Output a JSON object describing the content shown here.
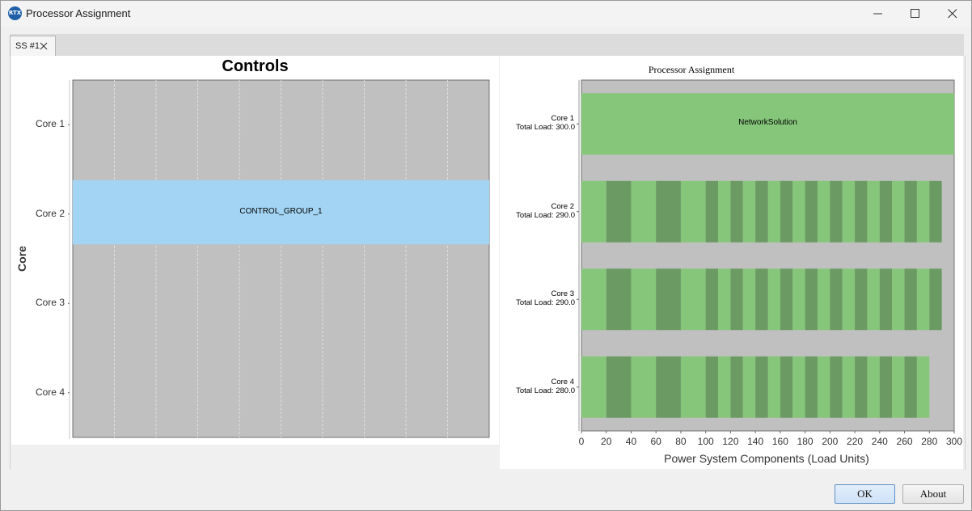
{
  "window": {
    "title": "Processor Assignment",
    "app_icon_text": "RTX"
  },
  "tabs": [
    {
      "label": "SS #1"
    }
  ],
  "left_chart": {
    "title": "Controls",
    "ylabel": "Core",
    "categories": [
      "Core 1",
      "Core 2",
      "Core 3",
      "Core 4"
    ],
    "colors": {
      "background": "#c0c0c0",
      "bar": "#a3d4f3"
    },
    "chart_data": {
      "type": "bar",
      "orientation": "horizontal",
      "title": "Controls",
      "xlabel": "",
      "ylabel": "Core",
      "categories": [
        "Core 1",
        "Core 2",
        "Core 3",
        "Core 4"
      ],
      "grid": true,
      "bars": [
        {
          "category": "Core 2",
          "label": "CONTROL_GROUP_1"
        }
      ]
    }
  },
  "right_chart": {
    "title": "Processor Assignment",
    "xlabel": "Power System Components (Load Units)",
    "xticks": [
      "0",
      "20",
      "40",
      "60",
      "80",
      "100",
      "120",
      "140",
      "160",
      "180",
      "200",
      "220",
      "240",
      "260",
      "280",
      "300"
    ],
    "cores": [
      {
        "name": "Core 1",
        "load_label": "Total Load: 300.0"
      },
      {
        "name": "Core 2",
        "load_label": "Total Load: 290.0"
      },
      {
        "name": "Core 3",
        "load_label": "Total Load: 290.0"
      },
      {
        "name": "Core 4",
        "load_label": "Total Load: 280.0"
      }
    ],
    "colors": {
      "background": "#c0c0c0",
      "light": "#86c67a",
      "dark": "#6b9a63"
    },
    "chart_data": {
      "type": "bar",
      "orientation": "horizontal",
      "stacked": true,
      "title": "Processor Assignment",
      "xlabel": "Power System Components (Load Units)",
      "xlim": [
        0,
        300
      ],
      "categories": [
        "Core 1",
        "Core 2",
        "Core 3",
        "Core 4"
      ],
      "totals": [
        300.0,
        290.0,
        290.0,
        280.0
      ],
      "segments": [
        [
          {
            "start": 0,
            "end": 300,
            "label": "NetworkSolution"
          }
        ],
        [
          {
            "start": 0,
            "end": 20
          },
          {
            "start": 20,
            "end": 40
          },
          {
            "start": 40,
            "end": 60
          },
          {
            "start": 60,
            "end": 80
          },
          {
            "start": 80,
            "end": 100
          },
          {
            "start": 100,
            "end": 110
          },
          {
            "start": 110,
            "end": 120
          },
          {
            "start": 120,
            "end": 130
          },
          {
            "start": 130,
            "end": 140
          },
          {
            "start": 140,
            "end": 150
          },
          {
            "start": 150,
            "end": 160
          },
          {
            "start": 160,
            "end": 170
          },
          {
            "start": 170,
            "end": 180
          },
          {
            "start": 180,
            "end": 190
          },
          {
            "start": 190,
            "end": 200
          },
          {
            "start": 200,
            "end": 210
          },
          {
            "start": 210,
            "end": 220
          },
          {
            "start": 220,
            "end": 230
          },
          {
            "start": 230,
            "end": 240
          },
          {
            "start": 240,
            "end": 250
          },
          {
            "start": 250,
            "end": 260
          },
          {
            "start": 260,
            "end": 270
          },
          {
            "start": 270,
            "end": 280
          },
          {
            "start": 280,
            "end": 290
          }
        ],
        [
          {
            "start": 0,
            "end": 20
          },
          {
            "start": 20,
            "end": 40
          },
          {
            "start": 40,
            "end": 60
          },
          {
            "start": 60,
            "end": 80
          },
          {
            "start": 80,
            "end": 100
          },
          {
            "start": 100,
            "end": 110
          },
          {
            "start": 110,
            "end": 120
          },
          {
            "start": 120,
            "end": 130
          },
          {
            "start": 130,
            "end": 140
          },
          {
            "start": 140,
            "end": 150
          },
          {
            "start": 150,
            "end": 160
          },
          {
            "start": 160,
            "end": 170
          },
          {
            "start": 170,
            "end": 180
          },
          {
            "start": 180,
            "end": 190
          },
          {
            "start": 190,
            "end": 200
          },
          {
            "start": 200,
            "end": 210
          },
          {
            "start": 210,
            "end": 220
          },
          {
            "start": 220,
            "end": 230
          },
          {
            "start": 230,
            "end": 240
          },
          {
            "start": 240,
            "end": 250
          },
          {
            "start": 250,
            "end": 260
          },
          {
            "start": 260,
            "end": 270
          },
          {
            "start": 270,
            "end": 280
          },
          {
            "start": 280,
            "end": 290
          }
        ],
        [
          {
            "start": 0,
            "end": 20
          },
          {
            "start": 20,
            "end": 40
          },
          {
            "start": 40,
            "end": 60
          },
          {
            "start": 60,
            "end": 80
          },
          {
            "start": 80,
            "end": 100
          },
          {
            "start": 100,
            "end": 110
          },
          {
            "start": 110,
            "end": 120
          },
          {
            "start": 120,
            "end": 130
          },
          {
            "start": 130,
            "end": 140
          },
          {
            "start": 140,
            "end": 150
          },
          {
            "start": 150,
            "end": 160
          },
          {
            "start": 160,
            "end": 170
          },
          {
            "start": 170,
            "end": 180
          },
          {
            "start": 180,
            "end": 190
          },
          {
            "start": 190,
            "end": 200
          },
          {
            "start": 200,
            "end": 210
          },
          {
            "start": 210,
            "end": 220
          },
          {
            "start": 220,
            "end": 230
          },
          {
            "start": 230,
            "end": 240
          },
          {
            "start": 240,
            "end": 250
          },
          {
            "start": 250,
            "end": 260
          },
          {
            "start": 260,
            "end": 270
          },
          {
            "start": 270,
            "end": 280
          }
        ]
      ]
    }
  },
  "buttons": {
    "ok": "OK",
    "about": "About"
  },
  "icons": [
    "app-logo-icon",
    "minimize-icon",
    "maximize-icon",
    "close-icon",
    "tab-close-icon"
  ]
}
